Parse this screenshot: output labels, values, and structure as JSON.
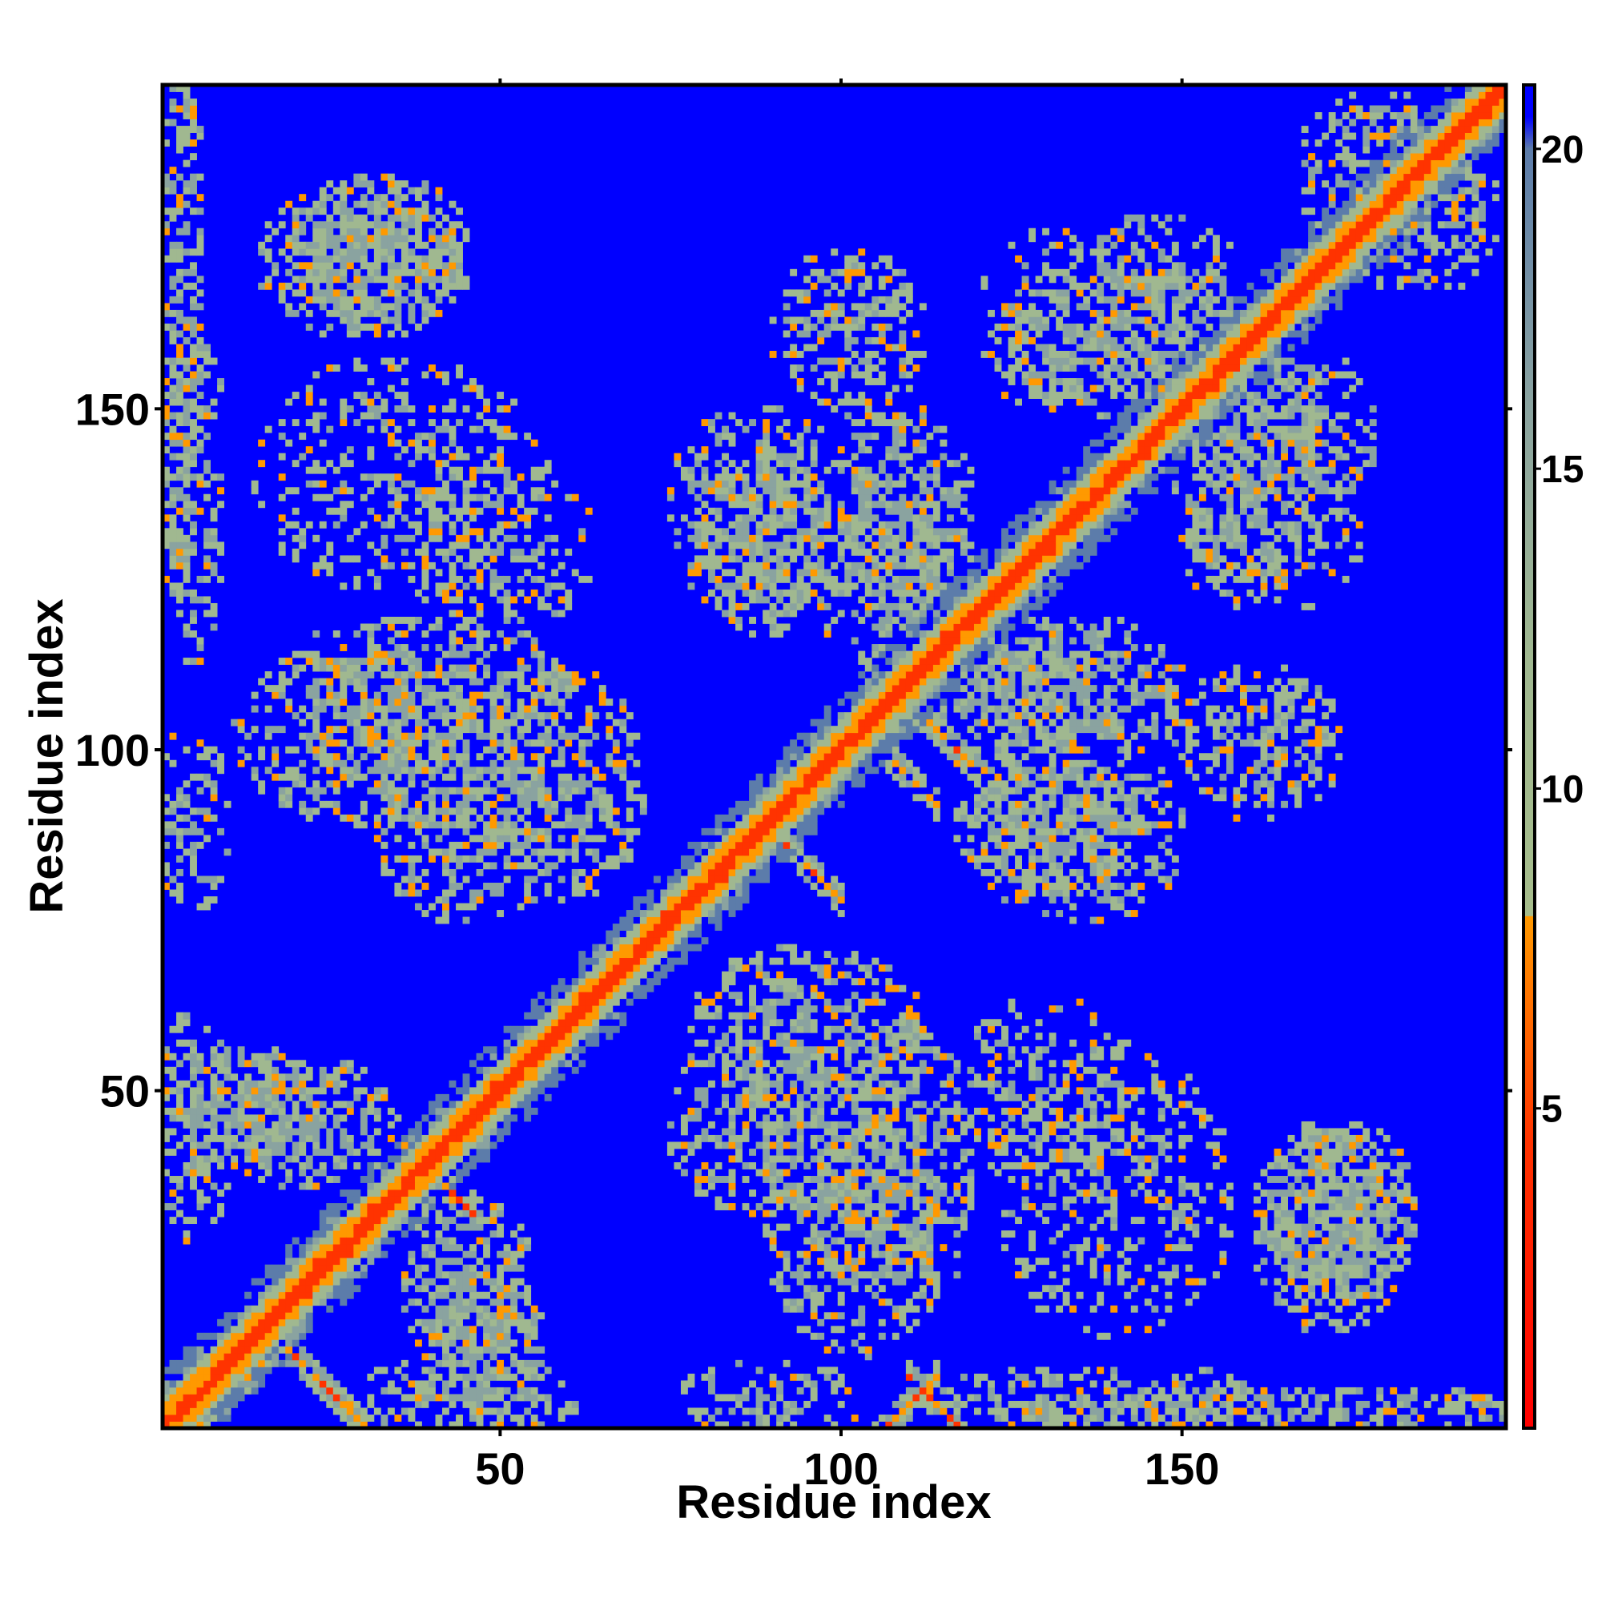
{
  "chart_data": {
    "type": "heatmap",
    "title": "",
    "xlabel": "Residue index",
    "ylabel": "Residue index",
    "n_residues": 197,
    "xlim": [
      1,
      197
    ],
    "ylim": [
      1,
      197
    ],
    "x_ticks": [
      50,
      100,
      150
    ],
    "y_ticks": [
      50,
      100,
      150
    ],
    "grid": false,
    "colorbar": {
      "position": "right",
      "min": 0,
      "max": 21,
      "ticks": [
        5,
        10,
        15,
        20
      ],
      "stops": [
        {
          "value": 0,
          "color": "#ff0000"
        },
        {
          "value": 4.5,
          "color": "#ff3300"
        },
        {
          "value": 8,
          "color": "#ff9900"
        },
        {
          "value": 8.01,
          "color": "#a6bd8c"
        },
        {
          "value": 12,
          "color": "#a0b890"
        },
        {
          "value": 16,
          "color": "#8aa3a0"
        },
        {
          "value": 20,
          "color": "#5c7caa"
        },
        {
          "value": 20.5,
          "color": "#0000ff"
        },
        {
          "value": 21,
          "color": "#0000ff"
        }
      ]
    },
    "background_value": 21,
    "diagonal_band_halfwidth": 4,
    "contact_features": [
      {
        "type": "antiparallel",
        "anchor": [
          18,
          13
        ],
        "length": 12,
        "strength": 0.85
      },
      {
        "type": "antiparallel",
        "anchor": [
          90,
          88
        ],
        "length": 10,
        "strength": 0.8
      },
      {
        "type": "antiparallel",
        "anchor": [
          104,
          102
        ],
        "length": 10,
        "strength": 0.8
      },
      {
        "type": "antiparallel",
        "anchor": [
          38,
          40
        ],
        "length": 8,
        "strength": 0.75
      },
      {
        "type": "antiparallel",
        "anchor": [
          112,
          6
        ],
        "length": 12,
        "strength": 0.8
      },
      {
        "type": "antiparallel",
        "anchor": [
          110,
          107
        ],
        "length": 10,
        "strength": 0.75
      },
      {
        "type": "patch",
        "center": [
          32,
          173
        ],
        "radii": [
          14,
          12
        ],
        "strength": 0.5
      },
      {
        "type": "patch",
        "center": [
          3,
          165
        ],
        "radii": [
          4,
          40
        ],
        "strength": 0.45
      },
      {
        "type": "patch",
        "center": [
          30,
          102
        ],
        "radii": [
          20,
          14
        ],
        "strength": 0.45
      },
      {
        "type": "patch",
        "center": [
          58,
          95
        ],
        "radii": [
          14,
          18
        ],
        "strength": 0.45
      },
      {
        "type": "patch",
        "center": [
          50,
          130
        ],
        "radii": [
          14,
          14
        ],
        "strength": 0.35
      },
      {
        "type": "patch",
        "center": [
          12,
          48
        ],
        "radii": [
          12,
          10
        ],
        "strength": 0.5
      },
      {
        "type": "patch",
        "center": [
          45,
          22
        ],
        "radii": [
          10,
          14
        ],
        "strength": 0.5
      },
      {
        "type": "patch",
        "center": [
          90,
          45
        ],
        "radii": [
          16,
          14
        ],
        "strength": 0.45
      },
      {
        "type": "patch",
        "center": [
          110,
          38
        ],
        "radii": [
          10,
          22
        ],
        "strength": 0.45
      },
      {
        "type": "patch",
        "center": [
          88,
          135
        ],
        "radii": [
          14,
          16
        ],
        "strength": 0.45
      },
      {
        "type": "patch",
        "center": [
          108,
          135
        ],
        "radii": [
          12,
          16
        ],
        "strength": 0.45
      },
      {
        "type": "patch",
        "center": [
          101,
          162
        ],
        "radii": [
          12,
          12
        ],
        "strength": 0.35
      },
      {
        "type": "patch",
        "center": [
          125,
          108
        ],
        "radii": [
          16,
          12
        ],
        "strength": 0.45
      },
      {
        "type": "patch",
        "center": [
          130,
          88
        ],
        "radii": [
          14,
          10
        ],
        "strength": 0.45
      },
      {
        "type": "patch",
        "center": [
          160,
          102
        ],
        "radii": [
          14,
          10
        ],
        "strength": 0.35
      },
      {
        "type": "patch",
        "center": [
          140,
          160
        ],
        "radii": [
          18,
          12
        ],
        "strength": 0.45
      },
      {
        "type": "patch",
        "center": [
          165,
          145
        ],
        "radii": [
          14,
          16
        ],
        "strength": 0.45
      },
      {
        "type": "patch",
        "center": [
          163,
          130
        ],
        "radii": [
          14,
          10
        ],
        "strength": 0.3
      },
      {
        "type": "patch",
        "center": [
          172,
          30
        ],
        "radii": [
          12,
          16
        ],
        "strength": 0.45
      },
      {
        "type": "patch",
        "center": [
          140,
          35
        ],
        "radii": [
          18,
          22
        ],
        "strength": 0.3
      },
      {
        "type": "patch",
        "center": [
          140,
          5
        ],
        "radii": [
          28,
          5
        ],
        "strength": 0.4
      },
      {
        "type": "patch",
        "center": [
          45,
          5
        ],
        "radii": [
          18,
          6
        ],
        "strength": 0.4
      },
      {
        "type": "patch",
        "center": [
          90,
          5
        ],
        "radii": [
          14,
          6
        ],
        "strength": 0.4
      },
      {
        "type": "patch",
        "center": [
          180,
          185
        ],
        "radii": [
          14,
          12
        ],
        "strength": 0.45
      }
    ]
  }
}
